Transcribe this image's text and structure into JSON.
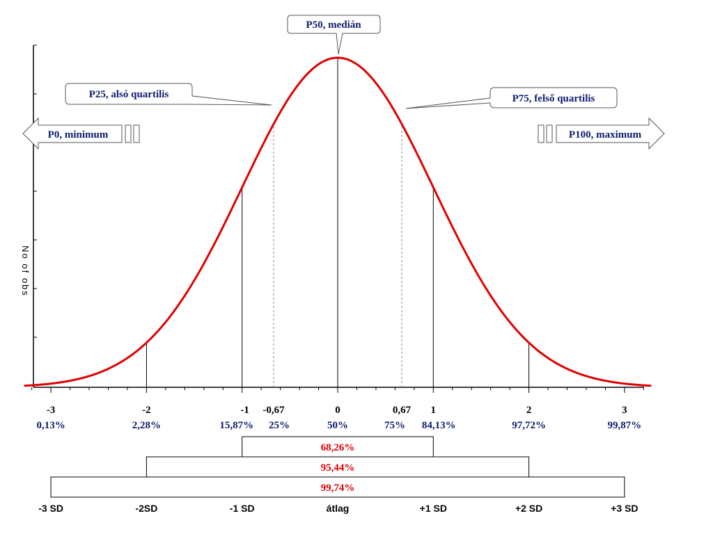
{
  "chart_data": {
    "type": "line",
    "title": "",
    "xlabel": "",
    "ylabel": "No of obs",
    "xlim": [
      -3.3,
      3.3
    ],
    "grid": false,
    "curve": {
      "distribution": "standard normal",
      "mean": 0,
      "sd": 1,
      "color": "#e00000"
    },
    "z_ticks": [
      {
        "z": -3,
        "label": "-3",
        "percent": "0,13%"
      },
      {
        "z": -2,
        "label": "-2",
        "percent": "2,28%"
      },
      {
        "z": -1,
        "label": "-1",
        "percent": "15,87%"
      },
      {
        "z": -0.67,
        "label": "-0,67",
        "percent": "25%"
      },
      {
        "z": 0,
        "label": "0",
        "percent": "50%"
      },
      {
        "z": 0.67,
        "label": "0,67",
        "percent": "75%"
      },
      {
        "z": 1,
        "label": "1",
        "percent": "84,13%"
      },
      {
        "z": 2,
        "label": "2",
        "percent": "97,72%"
      },
      {
        "z": 3,
        "label": "3",
        "percent": "99,87%"
      }
    ],
    "vertical_lines": [
      {
        "z": -2,
        "style": "solid"
      },
      {
        "z": -1,
        "style": "solid"
      },
      {
        "z": -0.67,
        "style": "dashed"
      },
      {
        "z": 0,
        "style": "solid"
      },
      {
        "z": 0.67,
        "style": "dashed"
      },
      {
        "z": 1,
        "style": "solid"
      },
      {
        "z": 2,
        "style": "solid"
      }
    ],
    "bands": [
      {
        "from": -1,
        "to": 1,
        "label": "68,26%"
      },
      {
        "from": -2,
        "to": 2,
        "label": "95,44%"
      },
      {
        "from": -3,
        "to": 3,
        "label": "99,74%"
      }
    ],
    "sd_labels": [
      {
        "z": -3,
        "label": "-3 SD"
      },
      {
        "z": -2,
        "label": "-2SD"
      },
      {
        "z": -1,
        "label": "-1 SD"
      },
      {
        "z": 0,
        "label": "átlag"
      },
      {
        "z": 1,
        "label": "+1 SD"
      },
      {
        "z": 2,
        "label": "+2 SD"
      },
      {
        "z": 3,
        "label": "+3 SD"
      }
    ],
    "annotations": {
      "median": "P50, medián",
      "lower_quartile": "P25, alsó quartilis",
      "upper_quartile": "P75, felső quartilis",
      "minimum": "P0, minimum",
      "maximum": "P100, maximum"
    }
  }
}
